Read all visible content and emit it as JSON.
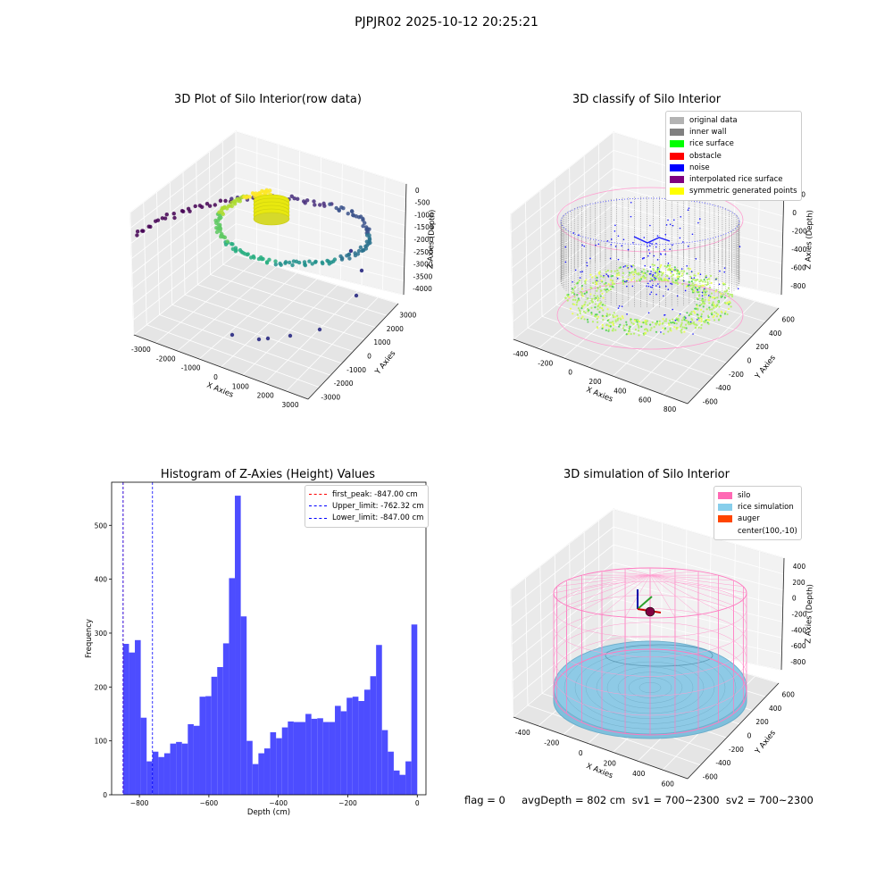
{
  "figure": {
    "suptitle": "PJPJR02 2025-10-12 20:25:21",
    "footer": "flag = 0     avgDepth = 802 cm  sv1 = 700~2300  sv2 = 700~2300"
  },
  "panels": {
    "raw": {
      "title": "3D Plot of Silo Interior(row data)",
      "xlabel": "X Axies",
      "ylabel": "Y Axies",
      "zlabel": "Z Axies (Depth)",
      "xticks": [
        "-3000",
        "-2000",
        "-1000",
        "0",
        "1000",
        "2000",
        "3000"
      ],
      "yticks": [
        "-3000",
        "-2000",
        "-1000",
        "0",
        "1000",
        "2000",
        "3000"
      ],
      "zticks": [
        "0",
        "-500",
        "-1000",
        "-1500",
        "-2000",
        "-2500",
        "-3000",
        "-3500",
        "-4000"
      ]
    },
    "classify": {
      "title": "3D classify of Silo Interior",
      "xlabel": "X Axies",
      "ylabel": "Y Axies",
      "zlabel": "Z Axies (Depth)",
      "xticks": [
        "-400",
        "-200",
        "0",
        "200",
        "400",
        "600",
        "800"
      ],
      "yticks": [
        "-600",
        "-400",
        "-200",
        "0",
        "200",
        "400",
        "600"
      ],
      "zticks": [
        "200",
        "0",
        "-200",
        "-400",
        "-600",
        "-800"
      ],
      "legend": [
        {
          "label": "original data",
          "color": "#b3b3b3"
        },
        {
          "label": "inner wall",
          "color": "#808080"
        },
        {
          "label": "rice surface",
          "color": "#00ff00"
        },
        {
          "label": "obstacle",
          "color": "#ff0000"
        },
        {
          "label": "noise",
          "color": "#0000ff"
        },
        {
          "label": "interpolated rice surface",
          "color": "#800080"
        },
        {
          "label": "symmetric generated points",
          "color": "#ffff00"
        }
      ]
    },
    "histogram": {
      "title": "Histogram of Z-Axies (Height) Values",
      "legend": [
        {
          "label": "first_peak: -847.00 cm",
          "color": "#ff0000"
        },
        {
          "label": "Upper_limit: -762.32 cm",
          "color": "#0000ff"
        },
        {
          "label": "Lower_limit: -847.00 cm",
          "color": "#0000ff"
        }
      ]
    },
    "simulation": {
      "title": "3D simulation of Silo Interior",
      "xlabel": "X Axies",
      "ylabel": "Y Axies",
      "zlabel": "Z Axies (Depth)",
      "xticks": [
        "-400",
        "-200",
        "0",
        "200",
        "400",
        "600"
      ],
      "yticks": [
        "-600",
        "-400",
        "-200",
        "0",
        "200",
        "400",
        "600"
      ],
      "zticks": [
        "400",
        "200",
        "0",
        "-200",
        "-400",
        "-600",
        "-800"
      ],
      "legend": [
        {
          "label": "silo",
          "color": "#ff69b4"
        },
        {
          "label": "rice simulation",
          "color": "#87ceeb"
        },
        {
          "label": "auger",
          "color": "#ff4500"
        },
        {
          "label": "center(100,-10)",
          "color": ""
        }
      ]
    }
  },
  "chart_data": [
    {
      "type": "scatter",
      "title": "3D Plot of Silo Interior(row data)",
      "xlabel": "X Axies",
      "ylabel": "Y Axies",
      "zlabel": "Z Axies (Depth)",
      "xlim": [
        -3400,
        3400
      ],
      "ylim": [
        -3400,
        3400
      ],
      "zlim": [
        -4200,
        0
      ]
    },
    {
      "type": "scatter",
      "title": "3D classify of Silo Interior",
      "xlabel": "X Axies",
      "ylabel": "Y Axies",
      "zlabel": "Z Axies (Depth)",
      "xlim": [
        -500,
        800
      ],
      "ylim": [
        -650,
        650
      ],
      "zlim": [
        -900,
        250
      ]
    },
    {
      "type": "bar",
      "title": "Histogram of Z-Axies (Height) Values",
      "xlabel": "Depth (cm)",
      "ylabel": "Frequency",
      "xlim": [
        -880,
        25
      ],
      "ylim": [
        0,
        580
      ],
      "xticks": [
        -800,
        -600,
        -400,
        -200,
        0
      ],
      "yticks": [
        0,
        100,
        200,
        300,
        400,
        500
      ],
      "bin_start": -847,
      "bin_width": 16.94,
      "values": [
        280,
        264,
        287,
        143,
        62,
        80,
        70,
        77,
        95,
        98,
        95,
        131,
        128,
        182,
        183,
        219,
        237,
        281,
        402,
        555,
        331,
        100,
        57,
        77,
        86,
        116,
        105,
        125,
        136,
        135,
        135,
        150,
        141,
        142,
        135,
        135,
        165,
        155,
        180,
        182,
        174,
        195,
        220,
        278,
        120,
        80,
        45,
        37,
        62,
        316
      ],
      "vlines": [
        {
          "name": "first_peak: -847.00 cm",
          "x": -847.0,
          "color": "#ff0000"
        },
        {
          "name": "Upper_limit: -762.32 cm",
          "x": -762.32,
          "color": "#0000ff"
        },
        {
          "name": "Lower_limit: -847.00 cm",
          "x": -847.0,
          "color": "#0000ff"
        }
      ],
      "bar_color": "#4d4dff"
    },
    {
      "type": "scatter",
      "title": "3D simulation of Silo Interior",
      "xlabel": "X Axies",
      "ylabel": "Y Axies",
      "zlabel": "Z Axies (Depth)",
      "xlim": [
        -500,
        700
      ],
      "ylim": [
        -650,
        650
      ],
      "zlim": [
        -900,
        450
      ]
    }
  ]
}
